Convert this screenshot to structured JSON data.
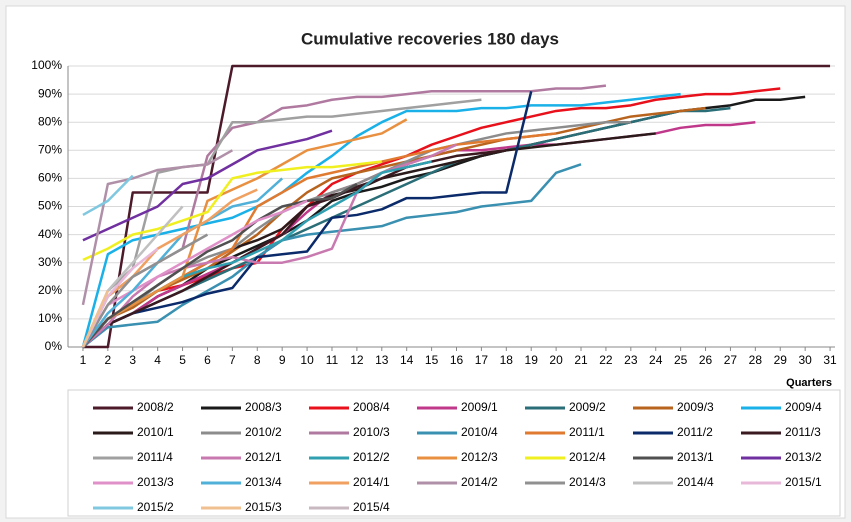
{
  "chart_data": {
    "type": "line",
    "title": "Cumulative recoveries 180 days",
    "x_label": "Quarters",
    "x": [
      1,
      2,
      3,
      4,
      5,
      6,
      7,
      8,
      9,
      10,
      11,
      12,
      13,
      14,
      15,
      16,
      17,
      18,
      19,
      20,
      21,
      22,
      23,
      24,
      25,
      26,
      27,
      28,
      29,
      30,
      31
    ],
    "xlim": [
      0.4,
      31.6
    ],
    "xticks": [
      1,
      2,
      3,
      4,
      5,
      6,
      7,
      8,
      9,
      10,
      11,
      12,
      13,
      14,
      15,
      16,
      17,
      18,
      19,
      20,
      21,
      22,
      23,
      24,
      25,
      26,
      27,
      28,
      29,
      30,
      31
    ],
    "ylim": [
      0,
      100
    ],
    "yticks": [
      {
        "value": 0,
        "label": "0%"
      },
      {
        "value": 10,
        "label": "10%"
      },
      {
        "value": 20,
        "label": "20%"
      },
      {
        "value": 30,
        "label": "30%"
      },
      {
        "value": 40,
        "label": "40%"
      },
      {
        "value": 50,
        "label": "50%"
      },
      {
        "value": 60,
        "label": "60%"
      },
      {
        "value": 70,
        "label": "70%"
      },
      {
        "value": 80,
        "label": "80%"
      },
      {
        "value": 90,
        "label": "90%"
      },
      {
        "value": 100,
        "label": "100%"
      }
    ],
    "grid": true,
    "legend": "bottom",
    "series": [
      {
        "name": "2008/2",
        "color": "#4d1a2a",
        "values": [
          0,
          0,
          55,
          55,
          55,
          55,
          100,
          100,
          100,
          100,
          100,
          100,
          100,
          100,
          100,
          100,
          100,
          100,
          100,
          100,
          100,
          100,
          100,
          100,
          100,
          100,
          100,
          100,
          100,
          100,
          100
        ]
      },
      {
        "name": "2008/3",
        "color": "#1a1a1a",
        "values": [
          0,
          8,
          12,
          18,
          22,
          28,
          32,
          36,
          40,
          45,
          52,
          55,
          57,
          60,
          62,
          65,
          68,
          70,
          72,
          74,
          76,
          78,
          80,
          82,
          84,
          85,
          86,
          88,
          88,
          89,
          null
        ]
      },
      {
        "name": "2008/4",
        "color": "#e8101a",
        "values": [
          0,
          10,
          15,
          20,
          22,
          25,
          28,
          30,
          42,
          50,
          58,
          62,
          65,
          68,
          72,
          75,
          78,
          80,
          82,
          84,
          85,
          85,
          86,
          88,
          89,
          90,
          90,
          91,
          92,
          null,
          null
        ]
      },
      {
        "name": "2009/1",
        "color": "#c0388a",
        "values": [
          0,
          8,
          12,
          18,
          22,
          26,
          30,
          35,
          40,
          48,
          55,
          58,
          62,
          65,
          68,
          70,
          70,
          71,
          72,
          72,
          73,
          74,
          75,
          76,
          78,
          79,
          79,
          80,
          null,
          null,
          null
        ]
      },
      {
        "name": "2009/2",
        "color": "#2a6e78",
        "values": [
          0,
          8,
          12,
          16,
          20,
          24,
          28,
          32,
          38,
          42,
          46,
          50,
          54,
          58,
          62,
          66,
          68,
          70,
          72,
          74,
          76,
          78,
          80,
          82,
          84,
          84,
          85,
          null,
          null,
          null,
          null
        ]
      },
      {
        "name": "2009/3",
        "color": "#b8641e",
        "values": [
          0,
          10,
          14,
          20,
          24,
          28,
          34,
          40,
          48,
          55,
          60,
          62,
          64,
          66,
          68,
          70,
          72,
          74,
          75,
          76,
          78,
          80,
          82,
          83,
          84,
          85,
          null,
          null,
          null,
          null,
          null
        ]
      },
      {
        "name": "2009/4",
        "color": "#1ab0e8",
        "values": [
          0,
          33,
          38,
          40,
          42,
          44,
          46,
          50,
          55,
          62,
          68,
          75,
          80,
          84,
          84,
          84,
          85,
          85,
          86,
          86,
          86,
          87,
          88,
          89,
          90,
          null,
          null,
          null,
          null,
          null,
          null
        ]
      },
      {
        "name": "2010/1",
        "color": "#2a1a1a",
        "values": [
          0,
          10,
          15,
          20,
          25,
          30,
          35,
          38,
          42,
          50,
          54,
          56,
          60,
          62,
          64,
          66,
          68,
          70,
          71,
          72,
          73,
          74,
          75,
          76,
          null,
          null,
          null,
          null,
          null,
          null,
          null
        ]
      },
      {
        "name": "2010/2",
        "color": "#8c8c8c",
        "values": [
          0,
          10,
          15,
          22,
          28,
          32,
          35,
          42,
          48,
          52,
          55,
          58,
          62,
          66,
          70,
          72,
          74,
          76,
          77,
          78,
          79,
          80,
          80,
          null,
          null,
          null,
          null,
          null,
          null,
          null,
          null
        ]
      },
      {
        "name": "2010/3",
        "color": "#b07aa0",
        "values": [
          0,
          18,
          25,
          30,
          35,
          68,
          78,
          80,
          85,
          86,
          88,
          89,
          89,
          90,
          91,
          91,
          91,
          91,
          91,
          92,
          92,
          93,
          null,
          null,
          null,
          null,
          null,
          null,
          null,
          null,
          null
        ]
      },
      {
        "name": "2010/4",
        "color": "#3a90b0",
        "values": [
          0,
          7,
          8,
          9,
          15,
          20,
          25,
          32,
          38,
          40,
          41,
          42,
          43,
          46,
          47,
          48,
          50,
          51,
          52,
          62,
          65,
          null,
          null,
          null,
          null,
          null,
          null,
          null,
          null,
          null,
          null
        ]
      },
      {
        "name": "2011/1",
        "color": "#e07a30",
        "values": [
          0,
          10,
          15,
          20,
          25,
          30,
          35,
          50,
          55,
          60,
          62,
          64,
          66,
          68,
          70,
          72,
          73,
          74,
          75,
          76,
          null,
          null,
          null,
          null,
          null,
          null,
          null,
          null,
          null,
          null,
          null
        ]
      },
      {
        "name": "2011/2",
        "color": "#0a2a6a",
        "values": [
          0,
          8,
          12,
          14,
          16,
          19,
          21,
          32,
          33,
          34,
          46,
          47,
          49,
          53,
          53,
          54,
          55,
          55,
          91,
          null,
          null,
          null,
          null,
          null,
          null,
          null,
          null,
          null,
          null,
          null,
          null
        ]
      },
      {
        "name": "2011/3",
        "color": "#3a1a20",
        "values": [
          0,
          8,
          12,
          16,
          20,
          25,
          30,
          35,
          40,
          50,
          53,
          57,
          60,
          64,
          66,
          68,
          69,
          70,
          null,
          null,
          null,
          null,
          null,
          null,
          null,
          null,
          null,
          null,
          null,
          null,
          null
        ]
      },
      {
        "name": "2011/4",
        "color": "#a0a0a0",
        "values": [
          0,
          20,
          28,
          62,
          64,
          65,
          80,
          80,
          81,
          82,
          82,
          83,
          84,
          85,
          86,
          87,
          88,
          null,
          null,
          null,
          null,
          null,
          null,
          null,
          null,
          null,
          null,
          null,
          null,
          null,
          null
        ]
      },
      {
        "name": "2012/1",
        "color": "#c87ab0",
        "values": [
          0,
          8,
          18,
          25,
          28,
          30,
          32,
          30,
          30,
          32,
          35,
          55,
          62,
          65,
          68,
          72,
          null,
          null,
          null,
          null,
          null,
          null,
          null,
          null,
          null,
          null,
          null,
          null,
          null,
          null,
          null
        ]
      },
      {
        "name": "2012/2",
        "color": "#30a0b0",
        "values": [
          0,
          10,
          15,
          20,
          25,
          28,
          30,
          34,
          38,
          45,
          50,
          55,
          62,
          64,
          66,
          null,
          null,
          null,
          null,
          null,
          null,
          null,
          null,
          null,
          null,
          null,
          null,
          null,
          null,
          null,
          null
        ]
      },
      {
        "name": "2012/3",
        "color": "#e89040",
        "values": [
          0,
          10,
          15,
          20,
          25,
          52,
          56,
          60,
          65,
          70,
          72,
          74,
          76,
          81,
          null,
          null,
          null,
          null,
          null,
          null,
          null,
          null,
          null,
          null,
          null,
          null,
          null,
          null,
          null,
          null,
          null
        ]
      },
      {
        "name": "2012/4",
        "color": "#f0f020",
        "values": [
          31,
          35,
          40,
          42,
          45,
          48,
          60,
          62,
          63,
          64,
          64,
          65,
          66,
          null,
          null,
          null,
          null,
          null,
          null,
          null,
          null,
          null,
          null,
          null,
          null,
          null,
          null,
          null,
          null,
          null,
          null
        ]
      },
      {
        "name": "2013/1",
        "color": "#505050",
        "values": [
          0,
          10,
          16,
          22,
          28,
          34,
          38,
          45,
          50,
          52,
          53,
          58,
          null,
          null,
          null,
          null,
          null,
          null,
          null,
          null,
          null,
          null,
          null,
          null,
          null,
          null,
          null,
          null,
          null,
          null,
          null
        ]
      },
      {
        "name": "2013/2",
        "color": "#7030a0",
        "values": [
          38,
          42,
          46,
          50,
          58,
          60,
          65,
          70,
          72,
          74,
          77,
          null,
          null,
          null,
          null,
          null,
          null,
          null,
          null,
          null,
          null,
          null,
          null,
          null,
          null,
          null,
          null,
          null,
          null,
          null,
          null
        ]
      },
      {
        "name": "2013/3",
        "color": "#e090c8",
        "values": [
          0,
          15,
          20,
          25,
          30,
          35,
          40,
          45,
          48,
          52,
          null,
          null,
          null,
          null,
          null,
          null,
          null,
          null,
          null,
          null,
          null,
          null,
          null,
          null,
          null,
          null,
          null,
          null,
          null,
          null,
          null
        ]
      },
      {
        "name": "2013/4",
        "color": "#50b0d8",
        "values": [
          0,
          12,
          20,
          30,
          40,
          45,
          50,
          52,
          60,
          null,
          null,
          null,
          null,
          null,
          null,
          null,
          null,
          null,
          null,
          null,
          null,
          null,
          null,
          null,
          null,
          null,
          null,
          null,
          null,
          null,
          null
        ]
      },
      {
        "name": "2014/1",
        "color": "#f0a060",
        "values": [
          0,
          18,
          25,
          35,
          40,
          45,
          52,
          56,
          null,
          null,
          null,
          null,
          null,
          null,
          null,
          null,
          null,
          null,
          null,
          null,
          null,
          null,
          null,
          null,
          null,
          null,
          null,
          null,
          null,
          null,
          null
        ]
      },
      {
        "name": "2014/2",
        "color": "#b090a8",
        "values": [
          15,
          58,
          60,
          63,
          64,
          65,
          70,
          null,
          null,
          null,
          null,
          null,
          null,
          null,
          null,
          null,
          null,
          null,
          null,
          null,
          null,
          null,
          null,
          null,
          null,
          null,
          null,
          null,
          null,
          null,
          null
        ]
      },
      {
        "name": "2014/3",
        "color": "#909090",
        "values": [
          0,
          15,
          25,
          30,
          35,
          40,
          null,
          null,
          null,
          null,
          null,
          null,
          null,
          null,
          null,
          null,
          null,
          null,
          null,
          null,
          null,
          null,
          null,
          null,
          null,
          null,
          null,
          null,
          null,
          null,
          null
        ]
      },
      {
        "name": "2014/4",
        "color": "#c0c0c0",
        "values": [
          0,
          20,
          30,
          40,
          50,
          null,
          null,
          null,
          null,
          null,
          null,
          null,
          null,
          null,
          null,
          null,
          null,
          null,
          null,
          null,
          null,
          null,
          null,
          null,
          null,
          null,
          null,
          null,
          null,
          null,
          null
        ]
      },
      {
        "name": "2015/1",
        "color": "#e8b8d8",
        "values": [
          0,
          18,
          28,
          35,
          null,
          null,
          null,
          null,
          null,
          null,
          null,
          null,
          null,
          null,
          null,
          null,
          null,
          null,
          null,
          null,
          null,
          null,
          null,
          null,
          null,
          null,
          null,
          null,
          null,
          null,
          null
        ]
      },
      {
        "name": "2015/2",
        "color": "#80c8e0",
        "values": [
          47,
          52,
          61,
          null,
          null,
          null,
          null,
          null,
          null,
          null,
          null,
          null,
          null,
          null,
          null,
          null,
          null,
          null,
          null,
          null,
          null,
          null,
          null,
          null,
          null,
          null,
          null,
          null,
          null,
          null,
          null
        ]
      },
      {
        "name": "2015/3",
        "color": "#f0c090",
        "values": [
          0,
          20,
          null,
          null,
          null,
          null,
          null,
          null,
          null,
          null,
          null,
          null,
          null,
          null,
          null,
          null,
          null,
          null,
          null,
          null,
          null,
          null,
          null,
          null,
          null,
          null,
          null,
          null,
          null,
          null,
          null
        ]
      },
      {
        "name": "2015/4",
        "color": "#c8b8c0",
        "values": [
          10,
          null,
          null,
          null,
          null,
          null,
          null,
          null,
          null,
          null,
          null,
          null,
          null,
          null,
          null,
          null,
          null,
          null,
          null,
          null,
          null,
          null,
          null,
          null,
          null,
          null,
          null,
          null,
          null,
          null,
          null
        ]
      }
    ]
  }
}
